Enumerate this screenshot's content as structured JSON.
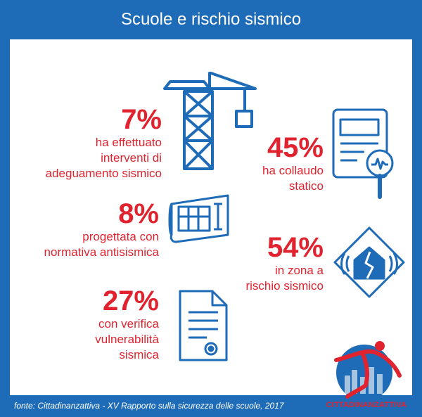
{
  "header": {
    "title": "Scuole e rischio sismico"
  },
  "stats": [
    {
      "value": "7%",
      "lines": [
        "ha effettuato",
        "interventi di",
        "adeguamento sismico"
      ],
      "icon": "crane-icon"
    },
    {
      "value": "45%",
      "lines": [
        "ha collaudo",
        "statico"
      ],
      "icon": "document-inspection-icon"
    },
    {
      "value": "8%",
      "lines": [
        "progettata con",
        "normativa antisismica"
      ],
      "icon": "blueprint-icon"
    },
    {
      "value": "54%",
      "lines": [
        "in zona a",
        "rischio sismico"
      ],
      "icon": "house-earthquake-icon"
    },
    {
      "value": "27%",
      "lines": [
        "con verifica",
        "vulnerabilità",
        "sismica"
      ],
      "icon": "certificate-document-icon"
    }
  ],
  "footer": {
    "source": "fonte: Cittadinanzattiva - XV Rapporto sulla sicurezza delle scuole, 2017"
  },
  "logo": {
    "text": "CITTADINANZATTIVA",
    "icon": "cittadinanzattiva-logo-icon"
  },
  "colors": {
    "brand_blue": "#1e6bb8",
    "accent_red": "#e0232e",
    "background": "#ffffff"
  }
}
